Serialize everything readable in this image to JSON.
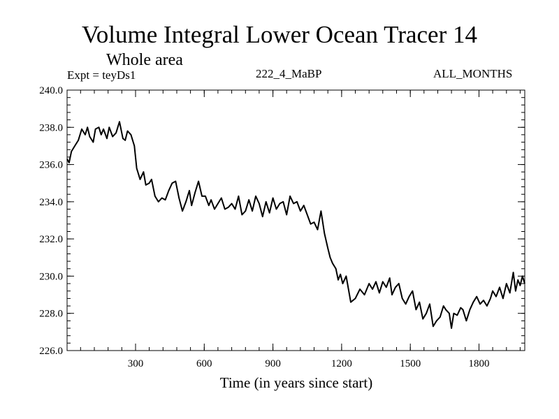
{
  "header": {
    "title": "Volume Integral Lower Ocean Tracer 14",
    "subtitle": "Whole area",
    "experiment": "Expt = teyDs1",
    "run_label": "222_4_MaBP",
    "months_label": "ALL_MONTHS"
  },
  "chart_data": {
    "type": "line",
    "title": "Volume Integral Lower Ocean Tracer 14",
    "subtitle": "Whole area",
    "xlabel": "Time (in years since start)",
    "ylabel": "",
    "xlim": [
      1,
      2000
    ],
    "ylim": [
      226.0,
      240.0
    ],
    "x_ticks": [
      300,
      600,
      900,
      1200,
      1500,
      1800
    ],
    "x_tick_labels": [
      "300",
      "600",
      "900",
      "1200",
      "1500",
      "1800"
    ],
    "y_ticks": [
      226.0,
      228.0,
      230.0,
      232.0,
      234.0,
      236.0,
      238.0,
      240.0
    ],
    "y_tick_labels": [
      "226.0",
      "228.0",
      "230.0",
      "232.0",
      "234.0",
      "236.0",
      "238.0",
      "240.0"
    ],
    "grid": false,
    "series": [
      {
        "name": "Tracer 14",
        "color": "#000000",
        "x": [
          1,
          10,
          20,
          35,
          50,
          65,
          80,
          90,
          100,
          115,
          125,
          140,
          150,
          160,
          175,
          185,
          200,
          215,
          230,
          245,
          255,
          265,
          280,
          295,
          305,
          320,
          335,
          345,
          360,
          370,
          385,
          400,
          415,
          430,
          445,
          460,
          475,
          490,
          505,
          520,
          535,
          545,
          560,
          575,
          590,
          605,
          620,
          630,
          645,
          660,
          675,
          690,
          705,
          720,
          735,
          750,
          765,
          780,
          795,
          810,
          825,
          840,
          855,
          870,
          885,
          900,
          915,
          930,
          945,
          960,
          975,
          990,
          1005,
          1020,
          1035,
          1050,
          1065,
          1080,
          1095,
          1110,
          1125,
          1140,
          1150,
          1160,
          1175,
          1185,
          1195,
          1205,
          1220,
          1240,
          1260,
          1280,
          1300,
          1320,
          1335,
          1350,
          1365,
          1380,
          1395,
          1410,
          1420,
          1435,
          1450,
          1465,
          1480,
          1495,
          1510,
          1525,
          1540,
          1555,
          1570,
          1585,
          1600,
          1615,
          1630,
          1645,
          1655,
          1670,
          1680,
          1690,
          1705,
          1720,
          1730,
          1745,
          1760,
          1775,
          1790,
          1805,
          1820,
          1835,
          1850,
          1860,
          1875,
          1890,
          1905,
          1920,
          1935,
          1950,
          1960,
          1970,
          1980,
          1990,
          2000
        ],
        "values": [
          236.3,
          236.1,
          236.7,
          237.0,
          237.3,
          237.9,
          237.6,
          238.0,
          237.5,
          237.2,
          237.9,
          238.0,
          237.6,
          237.9,
          237.4,
          238.0,
          237.5,
          237.7,
          238.3,
          237.4,
          237.3,
          237.8,
          237.6,
          237.0,
          235.8,
          235.2,
          235.6,
          234.9,
          235.0,
          235.2,
          234.3,
          234.0,
          234.2,
          234.1,
          234.6,
          235.0,
          235.1,
          234.2,
          233.5,
          234.0,
          234.6,
          233.8,
          234.5,
          235.1,
          234.3,
          234.3,
          233.8,
          234.1,
          233.6,
          233.9,
          234.2,
          233.6,
          233.7,
          233.9,
          233.6,
          234.3,
          233.3,
          233.5,
          234.1,
          233.5,
          234.3,
          233.9,
          233.2,
          234.0,
          233.4,
          234.2,
          233.6,
          233.9,
          234.0,
          233.3,
          234.3,
          233.9,
          234.0,
          233.5,
          233.8,
          233.3,
          232.8,
          232.9,
          232.5,
          233.5,
          232.3,
          231.5,
          231.0,
          230.7,
          230.4,
          229.8,
          230.1,
          229.6,
          230.0,
          228.6,
          228.8,
          229.3,
          229.0,
          229.6,
          229.3,
          229.7,
          229.1,
          229.7,
          229.4,
          229.9,
          229.0,
          229.4,
          229.6,
          228.8,
          228.5,
          228.9,
          229.2,
          228.2,
          228.6,
          227.7,
          228.0,
          228.5,
          227.3,
          227.6,
          227.8,
          228.4,
          228.2,
          228.0,
          227.2,
          228.0,
          227.9,
          228.3,
          228.2,
          227.6,
          228.2,
          228.6,
          228.9,
          228.5,
          228.7,
          228.4,
          228.8,
          229.2,
          228.9,
          229.4,
          228.8,
          229.6,
          229.1,
          230.2,
          229.2,
          229.8,
          229.5,
          230.0,
          229.6
        ]
      }
    ]
  }
}
